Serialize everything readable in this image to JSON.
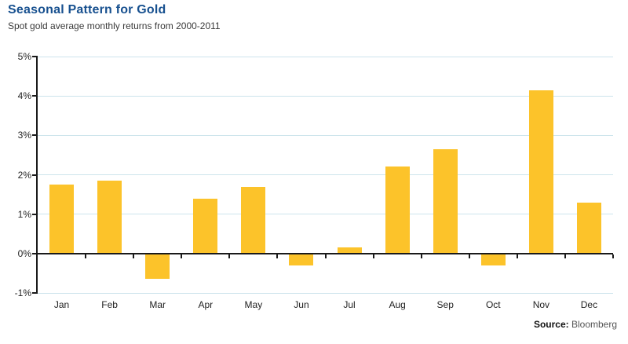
{
  "header": {
    "title": "Seasonal Pattern for Gold",
    "subtitle": "Spot gold average monthly returns from 2000-2011"
  },
  "source": {
    "label": "Source:",
    "value": "Bloomberg"
  },
  "colors": {
    "bar": "#FCC32A",
    "grid": "#CDE4EC",
    "axis": "#1a1a1a",
    "title": "#17508F",
    "subtitle": "#3a3a3a",
    "tick_text": "#222222"
  },
  "chart_data": {
    "type": "bar",
    "title": "Seasonal Pattern for Gold",
    "subtitle": "Spot gold average monthly returns from 2000-2011",
    "categories": [
      "Jan",
      "Feb",
      "Mar",
      "Apr",
      "May",
      "Jun",
      "Jul",
      "Aug",
      "Sep",
      "Oct",
      "Nov",
      "Dec"
    ],
    "values": [
      1.75,
      1.85,
      -0.65,
      1.4,
      1.7,
      -0.3,
      0.15,
      2.2,
      2.65,
      -0.3,
      4.15,
      1.3
    ],
    "xlabel": "",
    "ylabel": "",
    "ylim": [
      -1,
      5
    ],
    "yticks": [
      5,
      4,
      3,
      2,
      1,
      0,
      -1
    ],
    "ytick_labels": [
      "5%",
      "4%",
      "3%",
      "2%",
      "1%",
      "0%",
      "-1%"
    ],
    "grid": true,
    "legend": false,
    "source": "Bloomberg"
  }
}
